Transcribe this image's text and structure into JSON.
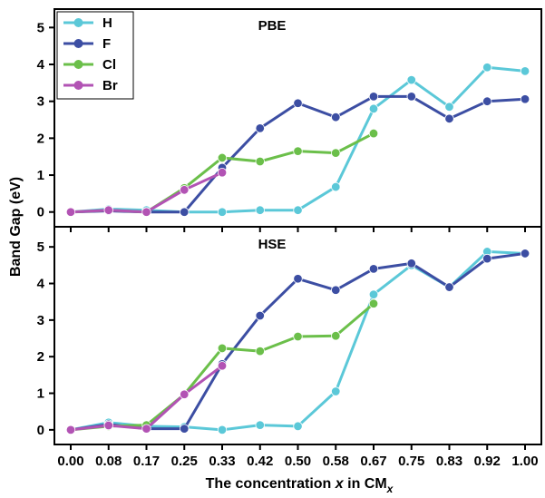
{
  "chart_data": [
    {
      "type": "line",
      "title": "PBE",
      "x": [
        "0.00",
        "0.08",
        "0.17",
        "0.25",
        "0.33",
        "0.42",
        "0.50",
        "0.58",
        "0.67",
        "0.75",
        "0.83",
        "0.92",
        "1.00"
      ],
      "ylim": [
        -0.4,
        5.5
      ],
      "yticks": [
        0,
        1,
        2,
        3,
        4,
        5
      ],
      "series": [
        {
          "name": "H",
          "color": "#5bc8d8",
          "values": [
            0.0,
            0.08,
            0.05,
            0.0,
            0.0,
            0.05,
            0.05,
            0.68,
            2.8,
            3.58,
            2.85,
            3.92,
            3.82
          ]
        },
        {
          "name": "F",
          "color": "#3c4ea3",
          "values": [
            0.0,
            0.03,
            0.0,
            0.0,
            1.2,
            2.27,
            2.95,
            2.57,
            3.13,
            3.13,
            2.53,
            3.0,
            3.06
          ]
        },
        {
          "name": "Cl",
          "color": "#6bbf4a",
          "values": [
            0.0,
            0.05,
            0.0,
            0.65,
            1.47,
            1.37,
            1.65,
            1.6,
            2.13,
            null,
            null,
            null,
            null
          ]
        },
        {
          "name": "Br",
          "color": "#b253b4",
          "values": [
            0.0,
            0.05,
            0.0,
            0.6,
            1.07,
            null,
            null,
            null,
            null,
            null,
            null,
            null,
            null
          ]
        }
      ]
    },
    {
      "type": "line",
      "title": "HSE",
      "x": [
        "0.00",
        "0.08",
        "0.17",
        "0.25",
        "0.33",
        "0.42",
        "0.50",
        "0.58",
        "0.67",
        "0.75",
        "0.83",
        "0.92",
        "1.00"
      ],
      "ylim": [
        -0.4,
        5.55
      ],
      "yticks": [
        0,
        1,
        2,
        3,
        4,
        5
      ],
      "series": [
        {
          "name": "H",
          "color": "#5bc8d8",
          "values": [
            0.0,
            0.2,
            0.1,
            0.08,
            0.0,
            0.13,
            0.1,
            1.05,
            3.7,
            4.5,
            3.9,
            4.87,
            4.82
          ]
        },
        {
          "name": "F",
          "color": "#3c4ea3",
          "values": [
            0.0,
            0.15,
            0.03,
            0.03,
            1.8,
            3.12,
            4.13,
            3.82,
            4.4,
            4.55,
            3.9,
            4.68,
            4.82
          ]
        },
        {
          "name": "Cl",
          "color": "#6bbf4a",
          "values": [
            0.0,
            0.1,
            0.13,
            0.97,
            2.23,
            2.15,
            2.55,
            2.57,
            3.45,
            null,
            null,
            null,
            null
          ]
        },
        {
          "name": "Br",
          "color": "#b253b4",
          "values": [
            0.0,
            0.12,
            0.03,
            0.97,
            1.75,
            null,
            null,
            null,
            null,
            null,
            null,
            null,
            null
          ]
        }
      ]
    }
  ],
  "axes": {
    "xlabel_prefix": "The concentration ",
    "xlabel_var": "x",
    "xlabel_mid": " in CM",
    "xlabel_sub": "x",
    "ylabel": "Band Gap (eV)"
  },
  "legend": {
    "placement": "top-left",
    "entries": [
      "H",
      "F",
      "Cl",
      "Br"
    ]
  }
}
